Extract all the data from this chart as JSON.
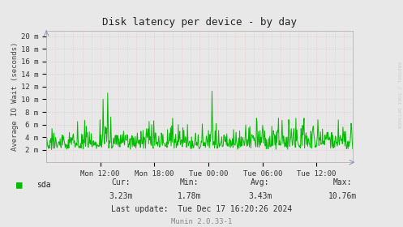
{
  "title": "Disk latency per device - by day",
  "ylabel": "Average IO Wait (seconds)",
  "bg_color": "#e8e8e8",
  "line_color": "#00bb00",
  "grid_color_h": "#cccccc",
  "grid_color_v": "#ffaaaa",
  "ytick_labels": [
    "2 m",
    "4 m",
    "6 m",
    "8 m",
    "10 m",
    "12 m",
    "14 m",
    "16 m",
    "18 m",
    "20 m"
  ],
  "ytick_values": [
    0.002,
    0.004,
    0.006,
    0.008,
    0.01,
    0.012,
    0.014,
    0.016,
    0.018,
    0.02
  ],
  "xtick_labels": [
    "Mon 12:00",
    "Mon 18:00",
    "Tue 00:00",
    "Tue 06:00",
    "Tue 12:00"
  ],
  "legend_label": "sda",
  "cur": "3.23m",
  "min": "1.78m",
  "avg": "3.43m",
  "max": "10.76m",
  "last_update": "Tue Dec 17 16:20:26 2024",
  "munin_version": "Munin 2.0.33-1",
  "watermark": "RRDTOOL / TOBI OETIKER",
  "ymin": 0.0,
  "ymax": 0.0209,
  "seed": 42
}
